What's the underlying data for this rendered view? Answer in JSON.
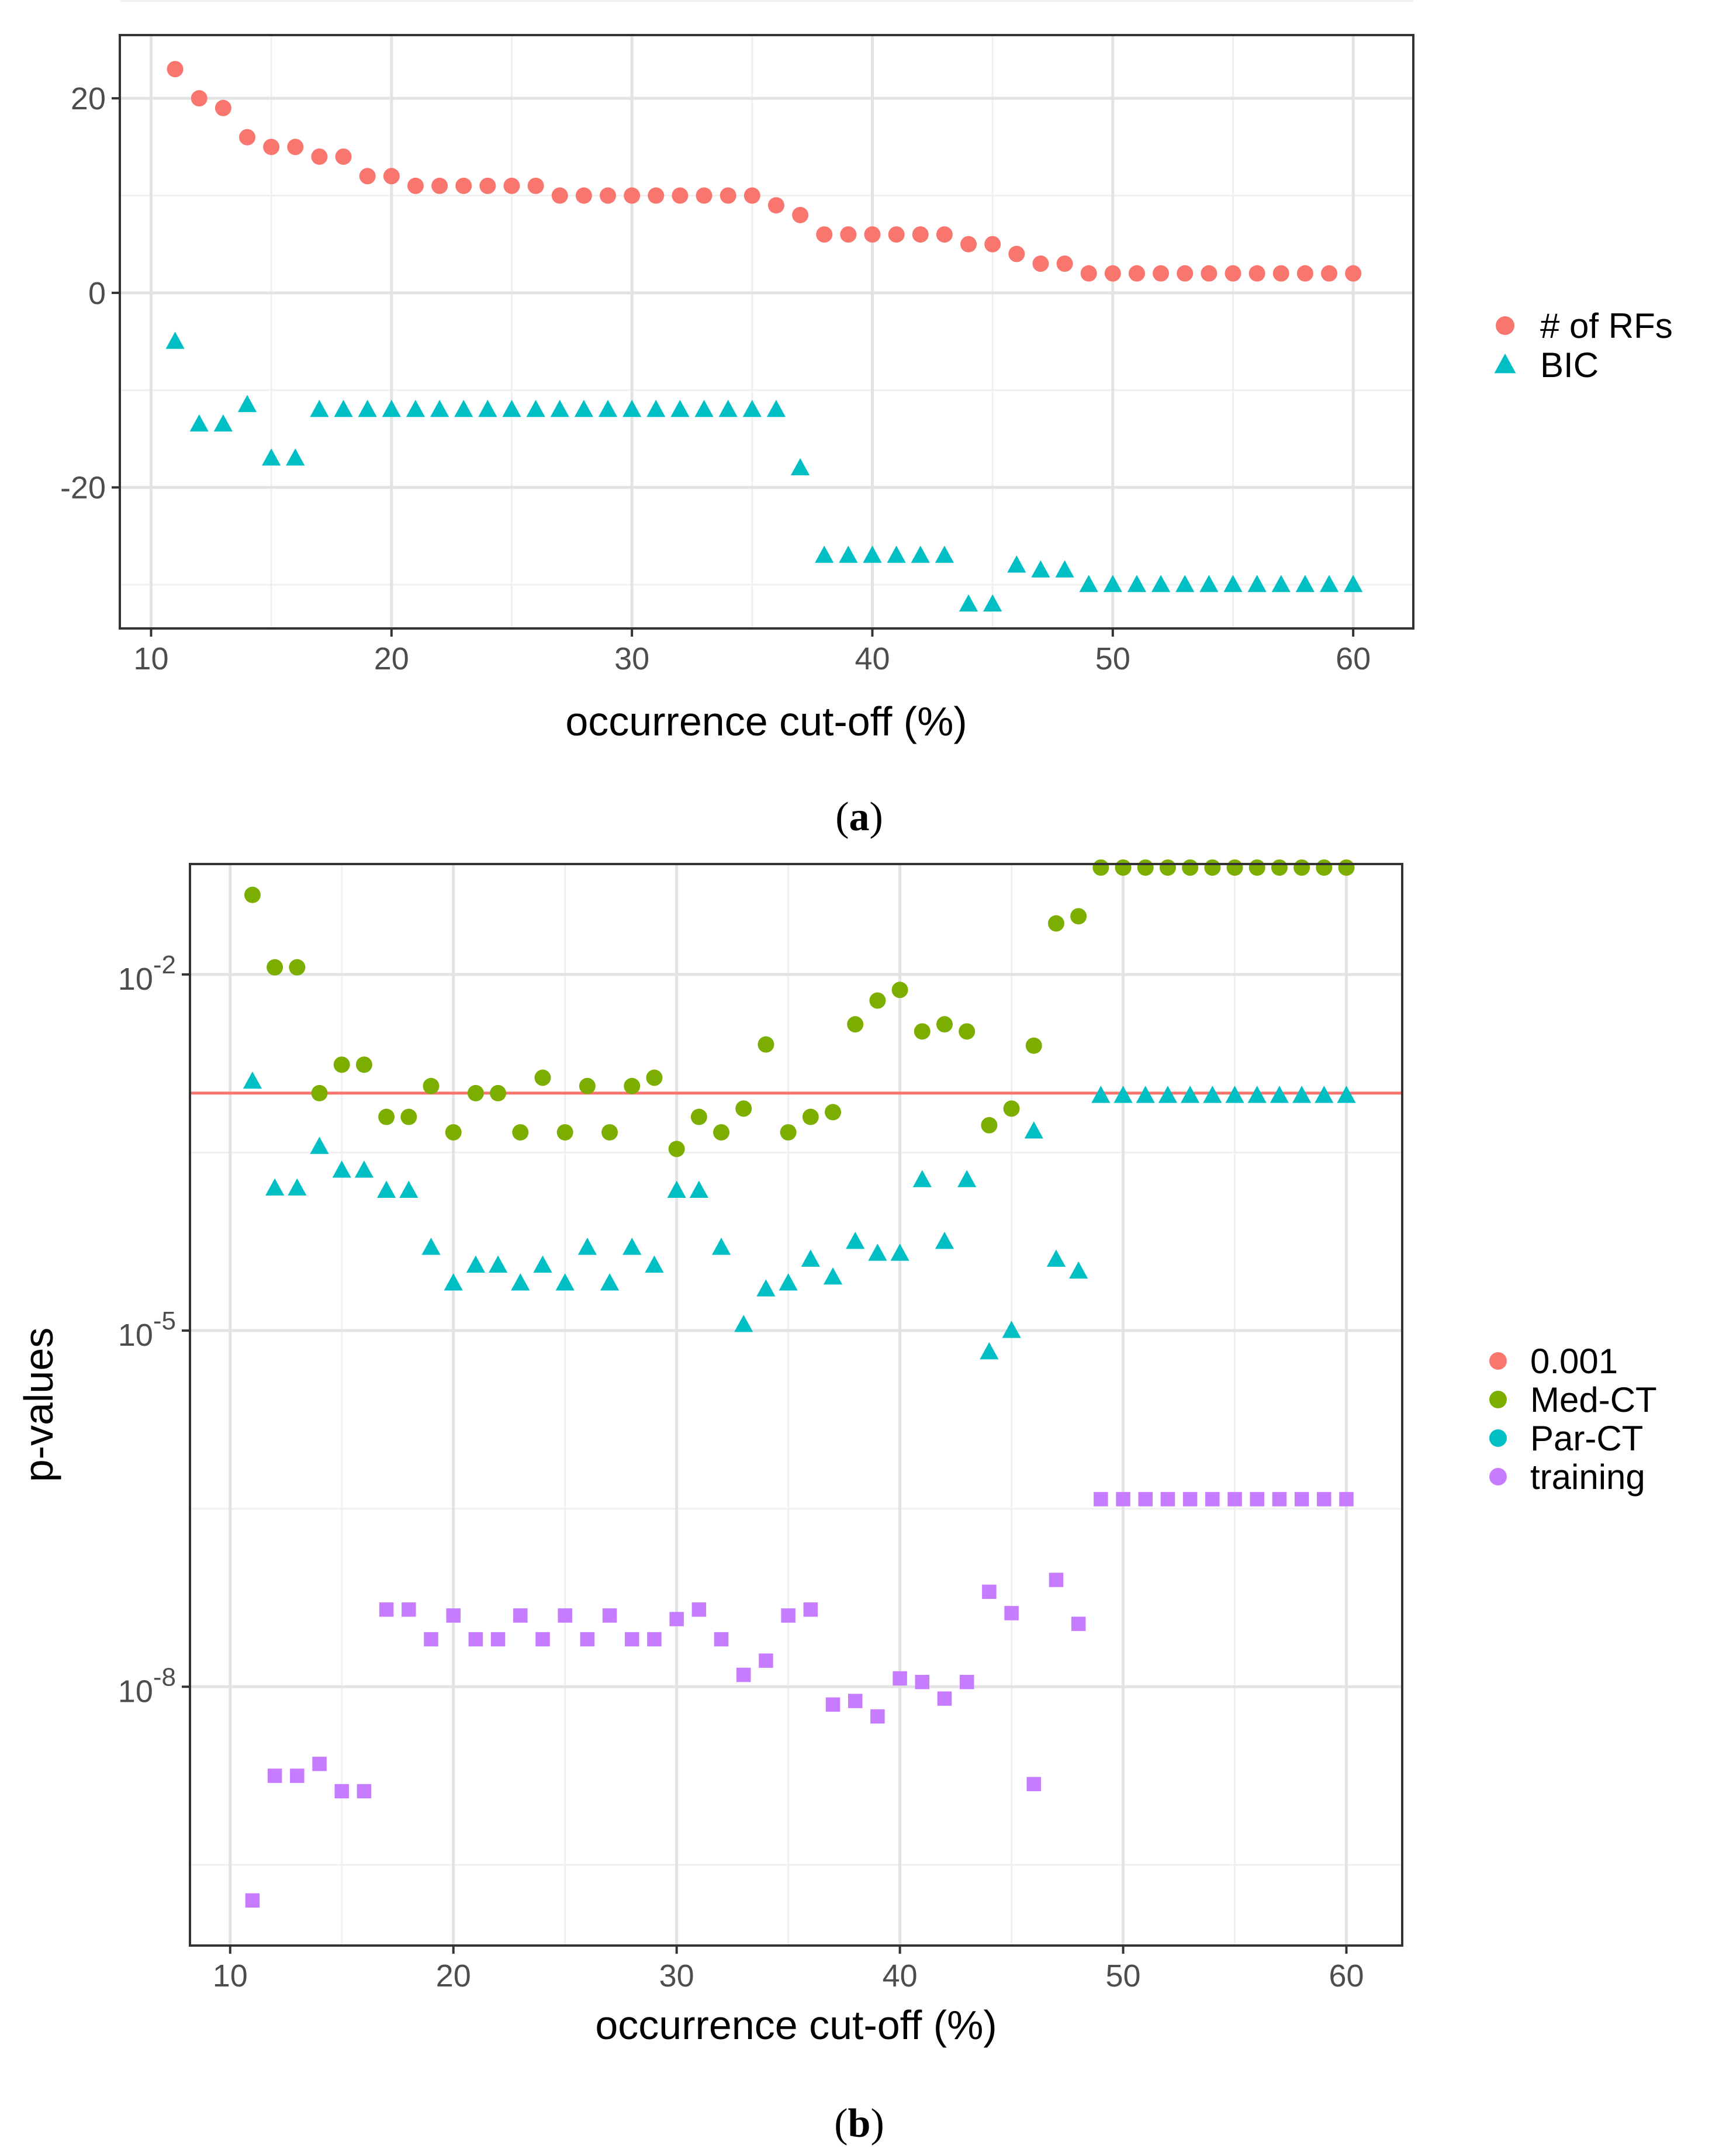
{
  "chart_data": [
    {
      "panel": "a",
      "type": "scatter",
      "caption_letter": "a",
      "xlabel": "occurrence cut-off (%)",
      "ylabel": "",
      "xlim": [
        8.7,
        62.5
      ],
      "ylim": [
        -34.5,
        26.5
      ],
      "xticks": [
        10,
        20,
        30,
        40,
        50,
        60
      ],
      "xtick_labels": [
        "10",
        "20",
        "30",
        "40",
        "50",
        "60"
      ],
      "yticks": [
        20,
        0,
        -20
      ],
      "ytick_labels": [
        "20",
        "0",
        "-20"
      ],
      "legend_position": "right",
      "series": [
        {
          "name": "# of RFs",
          "shape": "circle",
          "color": "#F8766D",
          "x": [
            11,
            12,
            13,
            14,
            15,
            16,
            17,
            18,
            19,
            20,
            21,
            22,
            23,
            24,
            25,
            26,
            27,
            28,
            29,
            30,
            31,
            32,
            33,
            34,
            35,
            36,
            37,
            38,
            39,
            40,
            41,
            42,
            43,
            44,
            45,
            46,
            47,
            48,
            49,
            50,
            51,
            52,
            53,
            54,
            55,
            56,
            57,
            58,
            59,
            60
          ],
          "y": [
            23,
            20,
            19,
            16,
            15,
            15,
            14,
            14,
            12,
            12,
            11,
            11,
            11,
            11,
            11,
            11,
            10,
            10,
            10,
            10,
            10,
            10,
            10,
            10,
            10,
            9,
            8,
            6,
            6,
            6,
            6,
            6,
            6,
            5,
            5,
            4,
            3,
            3,
            2,
            2,
            2,
            2,
            2,
            2,
            2,
            2,
            2,
            2,
            2,
            2
          ]
        },
        {
          "name": "BIC",
          "shape": "triangle",
          "color": "#00BFC4",
          "x": [
            11,
            12,
            13,
            14,
            15,
            16,
            17,
            18,
            19,
            20,
            21,
            22,
            23,
            24,
            25,
            26,
            27,
            28,
            29,
            30,
            31,
            32,
            33,
            34,
            35,
            36,
            37,
            38,
            39,
            40,
            41,
            42,
            43,
            44,
            45,
            46,
            47,
            48,
            49,
            50,
            51,
            52,
            53,
            54,
            55,
            56,
            57,
            58,
            59,
            60
          ],
          "y": [
            -5,
            -13.5,
            -13.5,
            -11.5,
            -17,
            -17,
            -12,
            -12,
            -12,
            -12,
            -12,
            -12,
            -12,
            -12,
            -12,
            -12,
            -12,
            -12,
            -12,
            -12,
            -12,
            -12,
            -12,
            -12,
            -12,
            -12,
            -18,
            -27,
            -27,
            -27,
            -27,
            -27,
            -27,
            -32,
            -32,
            -28,
            -28.5,
            -28.5,
            -30,
            -30,
            -30,
            -30,
            -30,
            -30,
            -30,
            -30,
            -30,
            -30,
            -30,
            -30
          ]
        }
      ]
    },
    {
      "panel": "b",
      "type": "scatter",
      "caption_letter": "b",
      "xlabel": "occurrence cut-off (%)",
      "ylabel": "p-values",
      "yscale": "log10",
      "xlim": [
        8.2,
        62.5
      ],
      "ylim_log10": [
        -10.18,
        -1.07
      ],
      "xticks": [
        10,
        20,
        30,
        40,
        50,
        60
      ],
      "xtick_labels": [
        "10",
        "20",
        "30",
        "40",
        "50",
        "60"
      ],
      "yticks_log10": [
        -2,
        -5,
        -8
      ],
      "ytick_labels": [
        {
          "base": "10",
          "exp": "-2"
        },
        {
          "base": "10",
          "exp": "-5"
        },
        {
          "base": "10",
          "exp": "-8"
        }
      ],
      "legend_position": "right",
      "reference_line": {
        "name": "0.001",
        "value": 0.001,
        "color": "#F8766D"
      },
      "series": [
        {
          "name": "Med-CT",
          "shape": "circle",
          "color": "#7CAE00",
          "x": [
            11,
            12,
            13,
            14,
            15,
            16,
            17,
            18,
            19,
            20,
            21,
            22,
            23,
            24,
            25,
            26,
            27,
            28,
            29,
            30,
            31,
            32,
            33,
            34,
            35,
            36,
            37,
            38,
            39,
            40,
            41,
            42,
            43,
            44,
            45,
            46,
            47,
            48,
            49,
            50,
            51,
            52,
            53,
            54,
            55,
            56,
            57,
            58,
            59,
            60
          ],
          "log10_p": [
            -1.33,
            -1.94,
            -1.94,
            -3.0,
            -2.76,
            -2.76,
            -3.2,
            -3.2,
            -2.94,
            -3.33,
            -3.0,
            -3.0,
            -3.33,
            -2.87,
            -3.33,
            -2.94,
            -3.33,
            -2.94,
            -2.87,
            -3.47,
            -3.2,
            -3.33,
            -3.13,
            -2.59,
            -3.33,
            -3.2,
            -3.16,
            -2.42,
            -2.22,
            -2.13,
            -2.48,
            -2.42,
            -2.48,
            -3.27,
            -3.13,
            -2.6,
            -1.57,
            -1.51,
            -1.1,
            -1.1,
            -1.1,
            -1.1,
            -1.1,
            -1.1,
            -1.1,
            -1.1,
            -1.1,
            -1.1,
            -1.1,
            -1.1
          ]
        },
        {
          "name": "Par-CT",
          "shape": "triangle",
          "color": "#00BFC4",
          "x": [
            11,
            12,
            13,
            14,
            15,
            16,
            17,
            18,
            19,
            20,
            21,
            22,
            23,
            24,
            25,
            26,
            27,
            28,
            29,
            30,
            31,
            32,
            33,
            34,
            35,
            36,
            37,
            38,
            39,
            40,
            41,
            42,
            43,
            44,
            45,
            46,
            47,
            48,
            49,
            50,
            51,
            52,
            53,
            54,
            55,
            56,
            57,
            58,
            59,
            60
          ],
          "log10_p": [
            -2.9,
            -3.8,
            -3.8,
            -3.45,
            -3.65,
            -3.65,
            -3.82,
            -3.82,
            -4.3,
            -4.6,
            -4.45,
            -4.45,
            -4.6,
            -4.45,
            -4.6,
            -4.3,
            -4.6,
            -4.3,
            -4.45,
            -3.82,
            -3.82,
            -4.3,
            -4.95,
            -4.65,
            -4.6,
            -4.4,
            -4.55,
            -4.25,
            -4.35,
            -4.35,
            -3.73,
            -4.25,
            -3.73,
            -5.18,
            -5.0,
            -3.32,
            -4.4,
            -4.5,
            -3.02,
            -3.02,
            -3.02,
            -3.02,
            -3.02,
            -3.02,
            -3.02,
            -3.02,
            -3.02,
            -3.02,
            -3.02,
            -3.02
          ]
        },
        {
          "name": "training",
          "shape": "square",
          "color": "#C77CFF",
          "x": [
            11,
            12,
            13,
            14,
            15,
            16,
            17,
            18,
            19,
            20,
            21,
            22,
            23,
            24,
            25,
            26,
            27,
            28,
            29,
            30,
            31,
            32,
            33,
            34,
            35,
            36,
            37,
            38,
            39,
            40,
            41,
            42,
            43,
            44,
            45,
            46,
            47,
            48,
            49,
            50,
            51,
            52,
            53,
            54,
            55,
            56,
            57,
            58,
            59,
            60
          ],
          "log10_p": [
            -9.8,
            -8.75,
            -8.75,
            -8.65,
            -8.88,
            -8.88,
            -7.35,
            -7.35,
            -7.6,
            -7.4,
            -7.6,
            -7.6,
            -7.4,
            -7.6,
            -7.4,
            -7.6,
            -7.4,
            -7.6,
            -7.6,
            -7.43,
            -7.35,
            -7.6,
            -7.9,
            -7.78,
            -7.4,
            -7.35,
            -8.15,
            -8.12,
            -8.25,
            -7.93,
            -7.96,
            -8.1,
            -7.96,
            -7.2,
            -7.38,
            -8.82,
            -7.1,
            -7.47,
            -6.42,
            -6.42,
            -6.42,
            -6.42,
            -6.42,
            -6.42,
            -6.42,
            -6.42,
            -6.42,
            -6.42,
            -6.42,
            -6.42
          ]
        }
      ]
    }
  ]
}
